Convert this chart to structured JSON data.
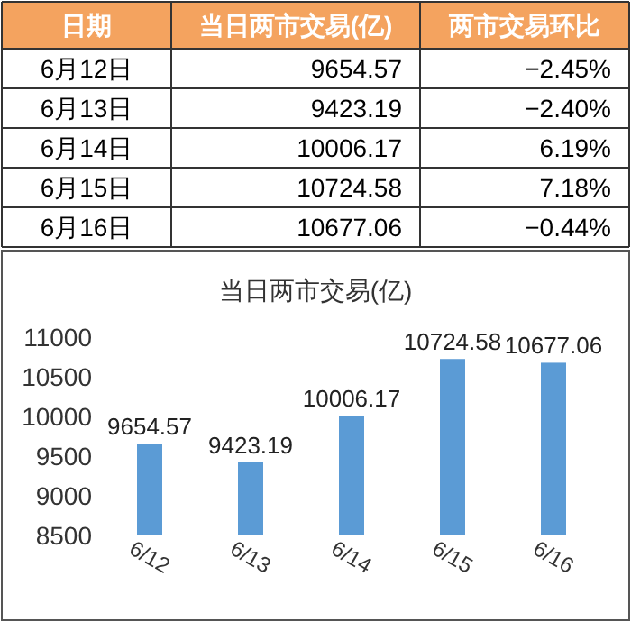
{
  "chart_data": [
    {
      "type": "other",
      "xlabel": "日期",
      "categories": [
        "6月12日",
        "6月13日",
        "6月14日",
        "6月15日",
        "6月16日"
      ],
      "series": [
        {
          "name": "当日两市交易(亿)",
          "values": [
            9654.57,
            9423.19,
            10006.17,
            10724.58,
            10677.06
          ],
          "value_labels": [
            "9654.57",
            "9423.19",
            "10006.17",
            "10724.58",
            "10677.06"
          ]
        },
        {
          "name": "两市交易环比",
          "values": [
            -2.45,
            -2.4,
            6.19,
            7.18,
            -0.44
          ],
          "value_labels": [
            "−2.45%",
            "−2.40%",
            "6.19%",
            "7.18%",
            "−0.44%"
          ]
        }
      ]
    },
    {
      "type": "bar",
      "title": "当日两市交易(亿)",
      "categories": [
        "6/12",
        "6/13",
        "6/14",
        "6/15",
        "6/16"
      ],
      "values": [
        9654.57,
        9423.19,
        10006.17,
        10724.58,
        10677.06
      ],
      "color": "#5b9bd5",
      "ylim": [
        8500,
        11000
      ],
      "yticks": [
        8500,
        9000,
        9500,
        10000,
        10500,
        11000
      ],
      "data_labels": true,
      "grid": false
    }
  ]
}
